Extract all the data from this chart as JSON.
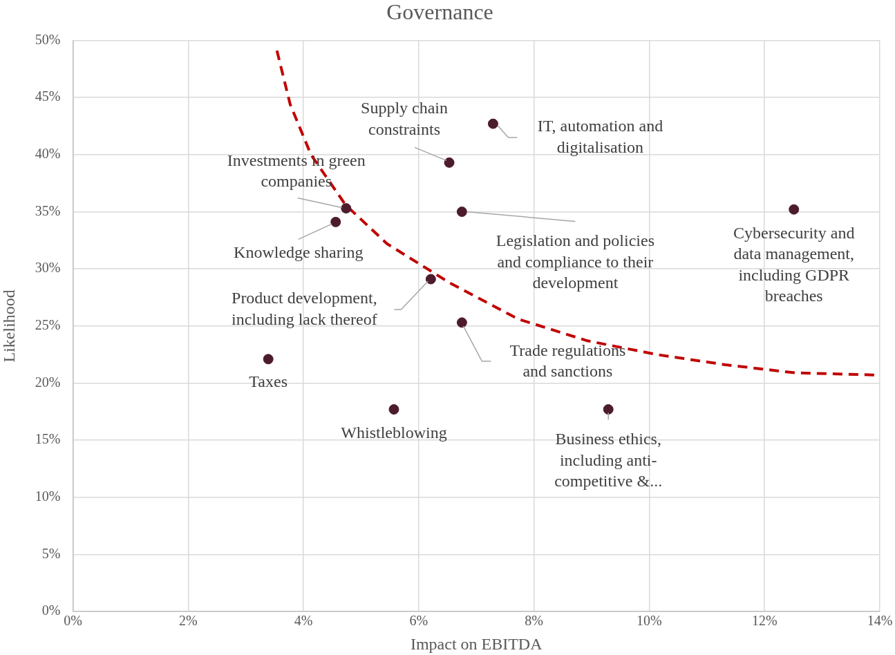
{
  "chart_data": {
    "type": "scatter",
    "title": "Governance",
    "xlabel": "Impact on EBITDA",
    "ylabel": "Likelihood",
    "xlim": [
      0,
      14
    ],
    "ylim": [
      0,
      50
    ],
    "xticks": [
      {
        "value": 0,
        "label": "0%"
      },
      {
        "value": 2,
        "label": "2%"
      },
      {
        "value": 4,
        "label": "4%"
      },
      {
        "value": 6,
        "label": "6%"
      },
      {
        "value": 8,
        "label": "8%"
      },
      {
        "value": 10,
        "label": "10%"
      },
      {
        "value": 12,
        "label": "12%"
      },
      {
        "value": 14,
        "label": "14%"
      }
    ],
    "yticks": [
      {
        "value": 0,
        "label": "0%"
      },
      {
        "value": 5,
        "label": "5%"
      },
      {
        "value": 10,
        "label": "10%"
      },
      {
        "value": 15,
        "label": "15%"
      },
      {
        "value": 20,
        "label": "20%"
      },
      {
        "value": 25,
        "label": "25%"
      },
      {
        "value": 30,
        "label": "30%"
      },
      {
        "value": 35,
        "label": "35%"
      },
      {
        "value": 40,
        "label": "40%"
      },
      {
        "value": 45,
        "label": "45%"
      },
      {
        "value": 50,
        "label": "50%"
      }
    ],
    "grid": true,
    "marker": "circle",
    "series": [
      {
        "color": "#4d1c2c",
        "x": [
          7.29,
          6.53,
          4.74,
          4.56,
          6.75,
          12.51,
          6.21,
          6.75,
          3.39,
          5.57,
          9.29
        ],
        "values": [
          42.7,
          39.3,
          35.3,
          34.1,
          35.0,
          35.2,
          29.1,
          25.3,
          22.1,
          17.7,
          17.7
        ]
      },
      {
        "type": "line",
        "color": "#c00000",
        "line_style": "dashed",
        "marker": "none",
        "x": [
          3.54,
          3.77,
          4.13,
          4.73,
          5.45,
          6.53,
          7.73,
          8.93,
          10.13,
          11.33,
          12.53,
          14
        ],
        "values": [
          49.1,
          44.4,
          40.0,
          35.6,
          32.2,
          28.8,
          25.6,
          23.7,
          22.5,
          21.6,
          20.9,
          20.7
        ]
      }
    ],
    "annotations": [
      {
        "text": "IT, automation and\ndigitalisation",
        "x": 7.29,
        "y": 42.7
      },
      {
        "text": "Supply chain\nconstraints",
        "x": 6.53,
        "y": 39.3
      },
      {
        "text": "Investments in green\ncompanies",
        "x": 4.74,
        "y": 35.3
      },
      {
        "text": "Knowledge sharing",
        "x": 4.56,
        "y": 34.1
      },
      {
        "text": "Legislation and policies\nand compliance to their\ndevelopment",
        "x": 6.75,
        "y": 35.0
      },
      {
        "text": "Cybersecurity and\ndata management,\nincluding GDPR\nbreaches",
        "x": 12.51,
        "y": 35.2
      },
      {
        "text": "Product development,\nincluding lack thereof",
        "x": 6.21,
        "y": 29.1
      },
      {
        "text": "Trade regulations\nand sanctions",
        "x": 6.75,
        "y": 25.3
      },
      {
        "text": "Taxes",
        "x": 3.39,
        "y": 22.1
      },
      {
        "text": "Whistleblowing",
        "x": 5.57,
        "y": 17.7
      },
      {
        "text": "Business ethics,\nincluding anti-\ncompetitive &...",
        "x": 9.29,
        "y": 17.7
      }
    ]
  }
}
